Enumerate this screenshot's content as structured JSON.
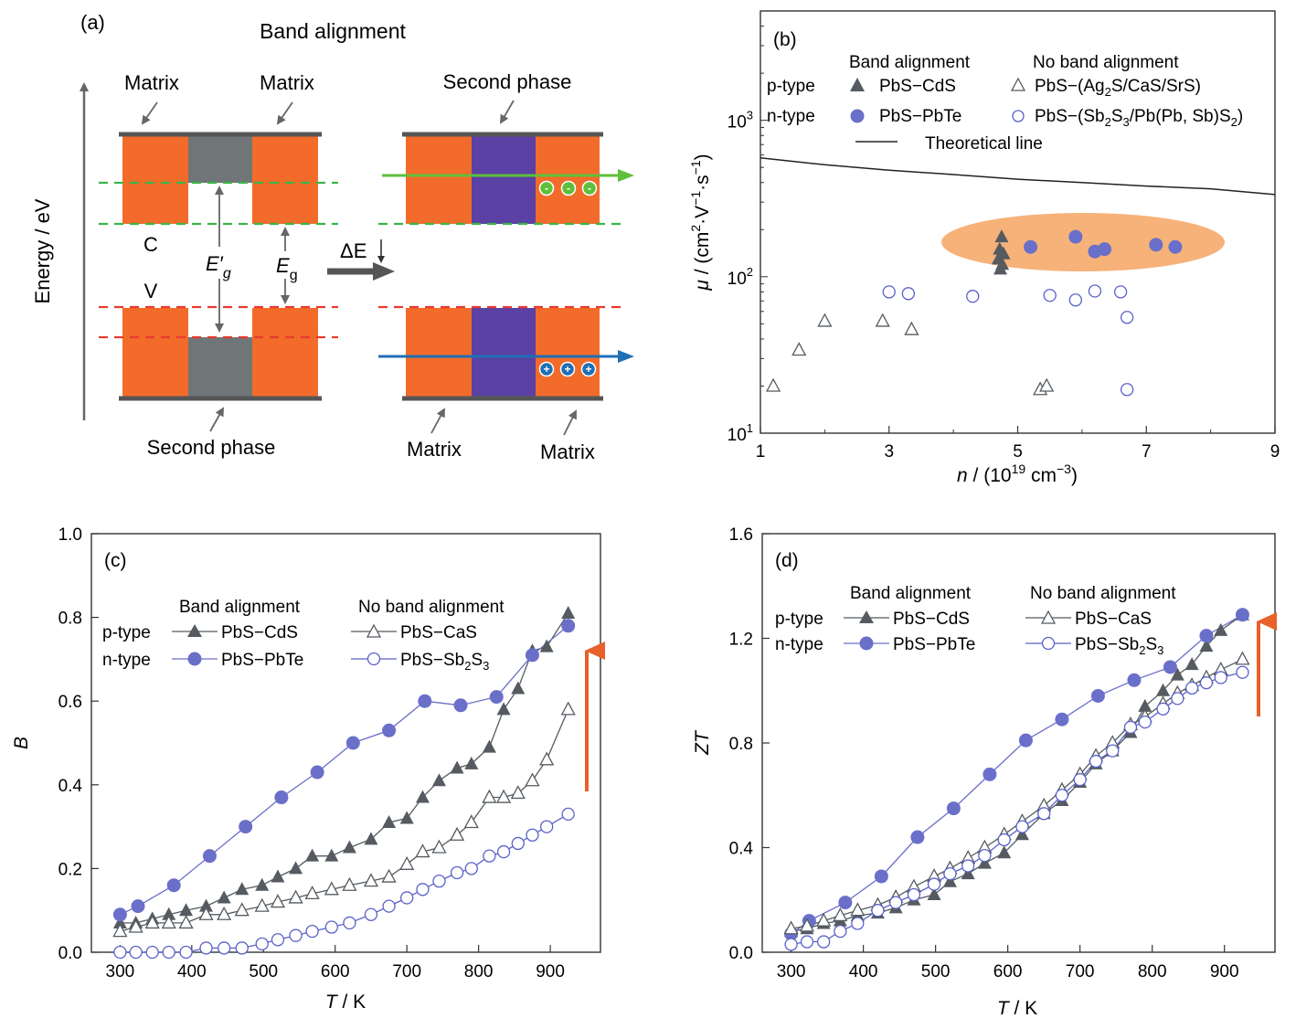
{
  "panel_a": {
    "tag": "(a)",
    "title": "Band alignment",
    "y_axis_label": "Energy / eV",
    "left_diagram": {
      "matrix_left": "Matrix",
      "matrix_right": "Matrix",
      "second_phase": "Second phase",
      "conduction_label": "C",
      "valence_label": "V",
      "eg_prime_main": "E′",
      "eg_prime_sub": "g",
      "eg_main": "E",
      "eg_sub": "g"
    },
    "arrow_label": "ΔE",
    "right_diagram": {
      "second_phase": "Second phase",
      "matrix_left": "Matrix",
      "matrix_right": "Matrix",
      "electron_sign": "-",
      "hole_sign": "+"
    },
    "colors": {
      "matrix": "#f26b2a",
      "second_phase_gray": "#707578",
      "second_phase_purple": "#5a41a3",
      "conduction_dash": "#3ab54a",
      "valence_dash": "#e83a2e",
      "electron_arrow": "#5fbf3a",
      "hole_arrow": "#1f6fb6"
    }
  },
  "panel_b": {
    "tag": "(b)",
    "legend": {
      "band_alignment": "Band alignment",
      "no_band_alignment": "No band alignment",
      "p_type": "p-type",
      "n_type": "n-type",
      "pbs_cds": "PbS−CdS",
      "pbs_pbte": "PbS−PbTe",
      "p_no_main": "PbS−(Ag",
      "p_no_s1": "2",
      "p_no_rest": "S/CaS/SrS)",
      "n_no_a": "PbS−(Sb",
      "n_no_s1": "2",
      "n_no_b": "S",
      "n_no_s2": "3",
      "n_no_c": "/Pb(Pb, Sb)S",
      "n_no_s3": "2",
      "n_no_d": ")",
      "theory": "Theoretical line"
    },
    "ylabel_mu": "μ",
    "ylabel_units": " / (cm",
    "ylabel_s1": "2",
    "ylabel_mid": "·V",
    "ylabel_s2": "−1",
    "ylabel_mid2": "·s",
    "ylabel_s3": "−1",
    "ylabel_end": ")",
    "xlabel_n": "n",
    "xlabel_units": " / (10",
    "xlabel_s1": "19",
    "xlabel_mid": " cm",
    "xlabel_s2": "−3",
    "xlabel_end": ")",
    "ytick_base": "10",
    "yticks": [
      {
        "exp": "1",
        "value": 10
      },
      {
        "exp": "2",
        "value": 100
      },
      {
        "exp": "3",
        "value": 1000
      }
    ]
  },
  "panel_c": {
    "tag": "(c)",
    "ylabel": "B",
    "xlabel_main": "T",
    "xlabel_unit": " / K",
    "legend": {
      "band_alignment": "Band alignment",
      "no_band_alignment": "No band alignment",
      "p_type": "p-type",
      "n_type": "n-type",
      "pbs_cds": "PbS−CdS",
      "pbs_pbte": "PbS−PbTe",
      "pbs_cas": "PbS−CaS",
      "pbs_sb_a": "PbS−Sb",
      "pbs_sb_s1": "2",
      "pbs_sb_b": "S",
      "pbs_sb_s2": "3"
    }
  },
  "panel_d": {
    "tag": "(d)",
    "ylabel": "ZT",
    "xlabel_main": "T",
    "xlabel_unit": " / K",
    "legend": {
      "band_alignment": "Band alignment",
      "no_band_alignment": "No band alignment",
      "p_type": "p-type",
      "n_type": "n-type",
      "pbs_cds": "PbS−CdS",
      "pbs_pbte": "PbS−PbTe",
      "pbs_cas": "PbS−CaS",
      "pbs_sb_a": "PbS−Sb",
      "pbs_sb_s1": "2",
      "pbs_sb_b": "S",
      "pbs_sb_s2": "3"
    }
  },
  "chart_data": [
    {
      "panel": "b",
      "type": "scatter",
      "xscale": "linear",
      "yscale": "log",
      "xlim": [
        1,
        9
      ],
      "ylim": [
        10,
        5000
      ],
      "xticks": [
        1,
        3,
        5,
        7,
        9
      ],
      "series": [
        {
          "name": "PbS−CdS",
          "marker": "triangle-filled",
          "color": "#555b60",
          "x": [
            4.75,
            4.72,
            4.78,
            4.7,
            4.76,
            4.73
          ],
          "y": [
            180,
            150,
            140,
            130,
            120,
            112
          ]
        },
        {
          "name": "PbS−PbTe",
          "marker": "circle-filled",
          "color": "#6a6fc9",
          "x": [
            5.2,
            5.9,
            6.2,
            6.35,
            7.15,
            7.45
          ],
          "y": [
            155,
            180,
            145,
            150,
            160,
            155
          ]
        },
        {
          "name": "PbS−(Ag2S/CaS/SrS)",
          "marker": "triangle-open",
          "color": "#555b60",
          "x": [
            1.2,
            1.6,
            2.0,
            2.9,
            3.35,
            5.35,
            5.45
          ],
          "y": [
            20,
            34,
            52,
            52,
            46,
            19,
            20
          ]
        },
        {
          "name": "PbS−(Sb2S3/Pb(Pb, Sb)S2)",
          "marker": "circle-open",
          "color": "#5a62c8",
          "x": [
            3.0,
            3.3,
            4.3,
            5.5,
            5.9,
            6.2,
            6.6,
            6.7,
            6.7
          ],
          "y": [
            80,
            78,
            75,
            76,
            71,
            81,
            80,
            55,
            19
          ]
        },
        {
          "name": "Theoretical line",
          "marker": "none",
          "color": "#222222",
          "x": [
            1,
            2,
            3,
            4,
            5,
            6,
            7,
            8,
            9
          ],
          "y": [
            575,
            520,
            480,
            450,
            420,
            400,
            380,
            365,
            335
          ]
        }
      ],
      "highlight_color": "#f5a462"
    },
    {
      "panel": "c",
      "type": "line",
      "xlim": [
        260,
        970
      ],
      "ylim": [
        0,
        1.0
      ],
      "xticks": [
        300,
        400,
        500,
        600,
        700,
        800,
        900
      ],
      "yticks": [
        0.0,
        0.2,
        0.4,
        0.6,
        0.8,
        1.0
      ],
      "series": [
        {
          "name": "PbS−CdS",
          "marker": "triangle-filled",
          "color": "#555b60",
          "x": [
            300,
            322,
            345,
            368,
            392,
            420,
            445,
            470,
            498,
            520,
            545,
            568,
            595,
            620,
            650,
            675,
            700,
            722,
            745,
            770,
            790,
            815,
            835,
            855,
            875,
            895,
            925
          ],
          "y": [
            0.07,
            0.07,
            0.08,
            0.09,
            0.1,
            0.11,
            0.13,
            0.15,
            0.16,
            0.18,
            0.2,
            0.23,
            0.23,
            0.25,
            0.27,
            0.31,
            0.32,
            0.37,
            0.41,
            0.44,
            0.45,
            0.49,
            0.58,
            0.63,
            0.72,
            0.73,
            0.81
          ]
        },
        {
          "name": "PbS−PbTe",
          "marker": "circle-filled",
          "color": "#6a6fc9",
          "x": [
            300,
            325,
            375,
            425,
            475,
            525,
            575,
            625,
            675,
            725,
            775,
            825,
            875,
            925
          ],
          "y": [
            0.09,
            0.11,
            0.16,
            0.23,
            0.3,
            0.37,
            0.43,
            0.5,
            0.53,
            0.6,
            0.59,
            0.61,
            0.71,
            0.78
          ]
        },
        {
          "name": "PbS−CaS",
          "marker": "triangle-open",
          "color": "#555b60",
          "x": [
            300,
            322,
            345,
            368,
            392,
            420,
            445,
            470,
            498,
            520,
            545,
            568,
            595,
            620,
            650,
            675,
            700,
            722,
            745,
            770,
            790,
            815,
            835,
            855,
            875,
            895,
            925
          ],
          "y": [
            0.05,
            0.06,
            0.07,
            0.07,
            0.07,
            0.09,
            0.09,
            0.1,
            0.11,
            0.12,
            0.13,
            0.14,
            0.15,
            0.16,
            0.17,
            0.18,
            0.21,
            0.24,
            0.25,
            0.28,
            0.31,
            0.37,
            0.37,
            0.38,
            0.41,
            0.46,
            0.58
          ]
        },
        {
          "name": "PbS−Sb2S3",
          "marker": "circle-open",
          "color": "#5a62c8",
          "x": [
            300,
            322,
            345,
            368,
            392,
            420,
            445,
            470,
            498,
            520,
            545,
            568,
            595,
            620,
            650,
            675,
            700,
            722,
            745,
            770,
            790,
            815,
            835,
            855,
            875,
            895,
            925
          ],
          "y": [
            0.0,
            0.0,
            0.0,
            0.0,
            0.0,
            0.01,
            0.01,
            0.01,
            0.02,
            0.03,
            0.04,
            0.05,
            0.06,
            0.07,
            0.09,
            0.11,
            0.13,
            0.15,
            0.17,
            0.19,
            0.2,
            0.23,
            0.24,
            0.26,
            0.28,
            0.3,
            0.33
          ]
        }
      ]
    },
    {
      "panel": "d",
      "type": "line",
      "xlim": [
        260,
        970
      ],
      "ylim": [
        0,
        1.6
      ],
      "xticks": [
        300,
        400,
        500,
        600,
        700,
        800,
        900
      ],
      "yticks": [
        0.0,
        0.4,
        0.8,
        1.2,
        1.6
      ],
      "series": [
        {
          "name": "PbS−CdS",
          "marker": "triangle-filled",
          "color": "#555b60",
          "x": [
            300,
            322,
            345,
            368,
            392,
            420,
            445,
            470,
            498,
            520,
            545,
            568,
            595,
            620,
            650,
            675,
            700,
            722,
            745,
            770,
            790,
            815,
            835,
            855,
            875,
            895,
            925
          ],
          "y": [
            0.08,
            0.09,
            0.11,
            0.12,
            0.14,
            0.15,
            0.17,
            0.2,
            0.22,
            0.27,
            0.3,
            0.34,
            0.38,
            0.45,
            0.53,
            0.58,
            0.65,
            0.72,
            0.77,
            0.84,
            0.94,
            1.0,
            1.06,
            1.1,
            1.17,
            1.23,
            1.29
          ]
        },
        {
          "name": "PbS−PbTe",
          "marker": "circle-filled",
          "color": "#6a6fc9",
          "x": [
            300,
            325,
            375,
            425,
            475,
            525,
            575,
            625,
            675,
            725,
            775,
            825,
            875,
            925
          ],
          "y": [
            0.07,
            0.12,
            0.19,
            0.29,
            0.44,
            0.55,
            0.68,
            0.81,
            0.89,
            0.98,
            1.04,
            1.09,
            1.21,
            1.29
          ]
        },
        {
          "name": "PbS−CaS",
          "marker": "triangle-open",
          "color": "#555b60",
          "x": [
            300,
            322,
            345,
            368,
            392,
            420,
            445,
            470,
            498,
            520,
            545,
            568,
            595,
            620,
            650,
            675,
            700,
            722,
            745,
            770,
            790,
            815,
            835,
            855,
            875,
            895,
            925
          ],
          "y": [
            0.09,
            0.1,
            0.12,
            0.14,
            0.16,
            0.18,
            0.21,
            0.25,
            0.29,
            0.32,
            0.36,
            0.4,
            0.45,
            0.5,
            0.56,
            0.62,
            0.68,
            0.75,
            0.8,
            0.87,
            0.9,
            0.95,
            0.99,
            1.02,
            1.05,
            1.08,
            1.12
          ]
        },
        {
          "name": "PbS−Sb2S3",
          "marker": "circle-open",
          "color": "#5a62c8",
          "x": [
            300,
            322,
            345,
            368,
            392,
            420,
            445,
            470,
            498,
            520,
            545,
            568,
            595,
            620,
            650,
            675,
            700,
            722,
            745,
            770,
            790,
            815,
            835,
            855,
            875,
            895,
            925
          ],
          "y": [
            0.03,
            0.04,
            0.04,
            0.08,
            0.11,
            0.16,
            0.19,
            0.22,
            0.26,
            0.3,
            0.33,
            0.37,
            0.43,
            0.48,
            0.53,
            0.6,
            0.66,
            0.73,
            0.77,
            0.86,
            0.88,
            0.93,
            0.97,
            1.01,
            1.03,
            1.05,
            1.07
          ]
        }
      ]
    }
  ]
}
